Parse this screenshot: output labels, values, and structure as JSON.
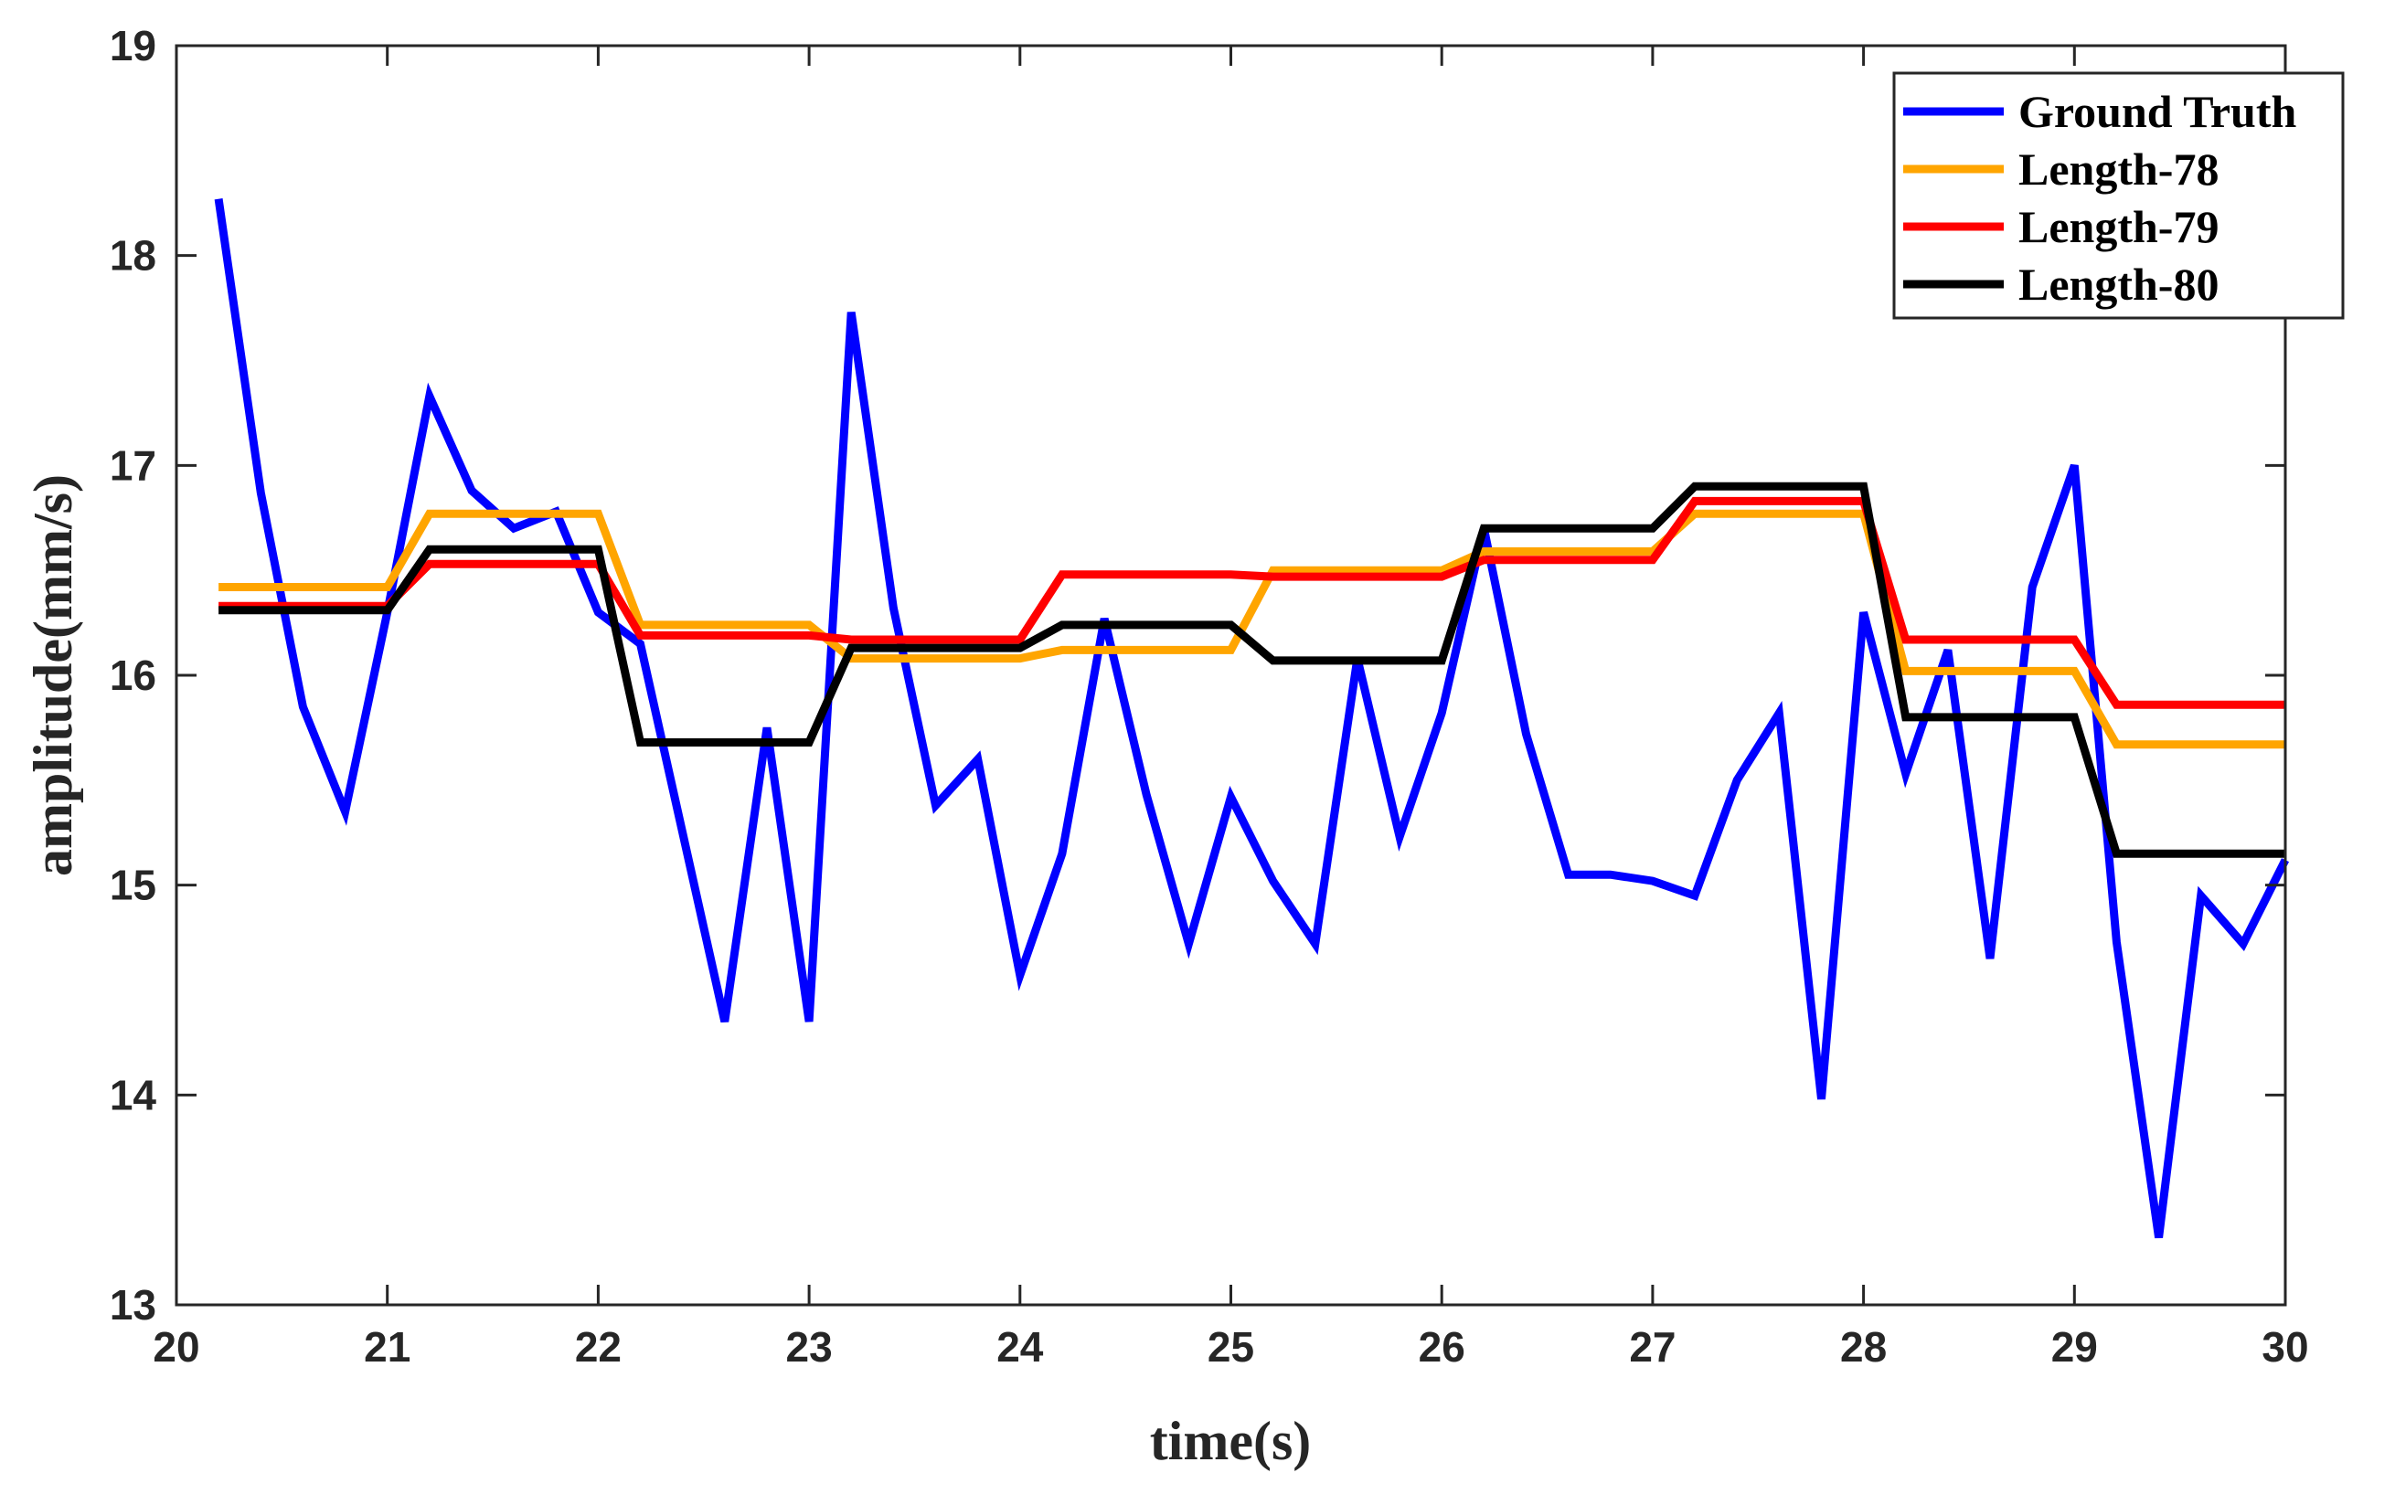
{
  "chart_data": {
    "type": "line",
    "xlabel": "time(s)",
    "ylabel": "amplitude(mm/s)",
    "xlim": [
      20,
      30
    ],
    "ylim": [
      13,
      19
    ],
    "xticks": [
      20,
      21,
      22,
      23,
      24,
      25,
      26,
      27,
      28,
      29,
      30
    ],
    "yticks": [
      13,
      14,
      15,
      16,
      17,
      18,
      19
    ],
    "legend_position": "top-right",
    "grid": false,
    "x": [
      20.2,
      20.4,
      20.6,
      20.8,
      21.0,
      21.2,
      21.4,
      21.6,
      21.8,
      22.0,
      22.2,
      22.4,
      22.6,
      22.8,
      23.0,
      23.2,
      23.4,
      23.6,
      23.8,
      24.0,
      24.2,
      24.4,
      24.6,
      24.8,
      25.0,
      25.2,
      25.4,
      25.6,
      25.8,
      26.0,
      26.2,
      26.4,
      26.6,
      26.8,
      27.0,
      27.2,
      27.4,
      27.6,
      27.8,
      28.0,
      28.2,
      28.4,
      28.6,
      28.8,
      29.0,
      29.2,
      29.4,
      29.6,
      29.8,
      30.0
    ],
    "series": [
      {
        "name": "Ground Truth",
        "color": "#0000ff",
        "values": [
          18.27,
          16.87,
          15.85,
          15.35,
          16.3,
          17.33,
          16.88,
          16.7,
          16.78,
          16.3,
          16.15,
          15.25,
          14.35,
          15.75,
          14.35,
          17.73,
          16.32,
          15.38,
          15.6,
          14.57,
          15.15,
          16.27,
          15.43,
          14.72,
          15.42,
          15.02,
          14.72,
          16.08,
          15.23,
          15.82,
          16.7,
          15.72,
          15.05,
          15.05,
          15.02,
          14.95,
          15.5,
          15.82,
          13.98,
          16.3,
          15.53,
          16.12,
          14.65,
          16.42,
          17.0,
          14.73,
          13.32,
          14.95,
          14.72,
          15.12
        ]
      },
      {
        "name": "Length-78",
        "color": "#ffa500",
        "values": [
          16.42,
          16.42,
          16.42,
          16.42,
          16.42,
          16.77,
          16.77,
          16.77,
          16.77,
          16.77,
          16.24,
          16.24,
          16.24,
          16.24,
          16.24,
          16.08,
          16.08,
          16.08,
          16.08,
          16.08,
          16.12,
          16.12,
          16.12,
          16.12,
          16.12,
          16.5,
          16.5,
          16.5,
          16.5,
          16.5,
          16.59,
          16.59,
          16.59,
          16.59,
          16.59,
          16.77,
          16.77,
          16.77,
          16.77,
          16.77,
          16.02,
          16.02,
          16.02,
          16.02,
          16.02,
          15.67,
          15.67,
          15.67,
          15.67,
          15.67
        ]
      },
      {
        "name": "Length-79",
        "color": "#ff0000",
        "values": [
          16.33,
          16.33,
          16.33,
          16.33,
          16.33,
          16.53,
          16.53,
          16.53,
          16.53,
          16.53,
          16.19,
          16.19,
          16.19,
          16.19,
          16.19,
          16.17,
          16.17,
          16.17,
          16.17,
          16.17,
          16.48,
          16.48,
          16.48,
          16.48,
          16.48,
          16.47,
          16.47,
          16.47,
          16.47,
          16.47,
          16.55,
          16.55,
          16.55,
          16.55,
          16.55,
          16.83,
          16.83,
          16.83,
          16.83,
          16.83,
          16.17,
          16.17,
          16.17,
          16.17,
          16.17,
          15.86,
          15.86,
          15.86,
          15.86,
          15.86
        ]
      },
      {
        "name": "Length-80",
        "color": "#000000",
        "values": [
          16.31,
          16.31,
          16.31,
          16.31,
          16.31,
          16.6,
          16.6,
          16.6,
          16.6,
          16.6,
          15.68,
          15.68,
          15.68,
          15.68,
          15.68,
          16.13,
          16.13,
          16.13,
          16.13,
          16.13,
          16.24,
          16.24,
          16.24,
          16.24,
          16.24,
          16.07,
          16.07,
          16.07,
          16.07,
          16.07,
          16.7,
          16.7,
          16.7,
          16.7,
          16.7,
          16.9,
          16.9,
          16.9,
          16.9,
          16.9,
          15.8,
          15.8,
          15.8,
          15.8,
          15.8,
          15.15,
          15.15,
          15.15,
          15.15,
          15.15
        ]
      }
    ]
  }
}
